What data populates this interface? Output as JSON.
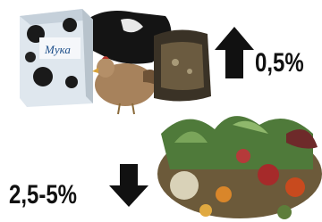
{
  "texts": {
    "flour_label": "Мука",
    "up_value": "0,5%",
    "down_value": "2,5-5%"
  }
}
